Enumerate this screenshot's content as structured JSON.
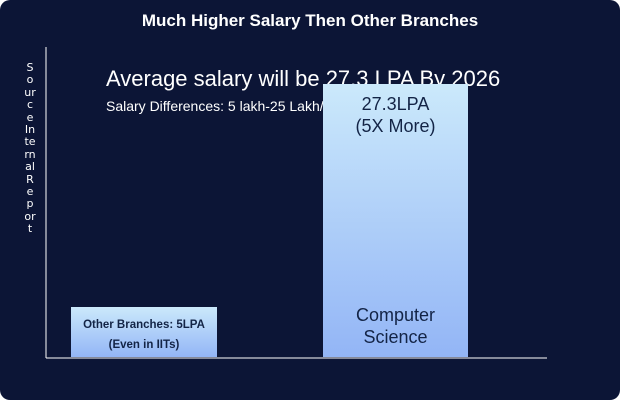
{
  "title": "Much Higher Salary Then Other Branches",
  "headline": "Average salary will be 27.3 LPA By 2026",
  "subheadline": "Salary Differences: 5 lakh-25 Lakh/Annum",
  "ylabel": "Source Internal Report",
  "colors": {
    "background": "#0c1536",
    "bar_top": "#cbe9fb",
    "bar_bottom": "#93b5f6",
    "text_dark": "#132446",
    "axis": "#ffffff"
  },
  "chart_data": {
    "type": "bar",
    "title": "Much Higher Salary Then Other Branches",
    "ylabel": "Source Internal Report",
    "xlabel": "",
    "categories": [
      "Other Branches",
      "Computer Science"
    ],
    "values": [
      5,
      27.3
    ],
    "unit": "LPA",
    "ylim": [
      0,
      31
    ],
    "grid": false,
    "legend": "none",
    "bar_labels": [
      {
        "value_text": "Other Branches: 5LPA",
        "note": "(Even in IITs)"
      },
      {
        "value_text": "27.3LPA",
        "note": "(5X More)",
        "category_line1": "Computer",
        "category_line2": "Science"
      }
    ]
  }
}
